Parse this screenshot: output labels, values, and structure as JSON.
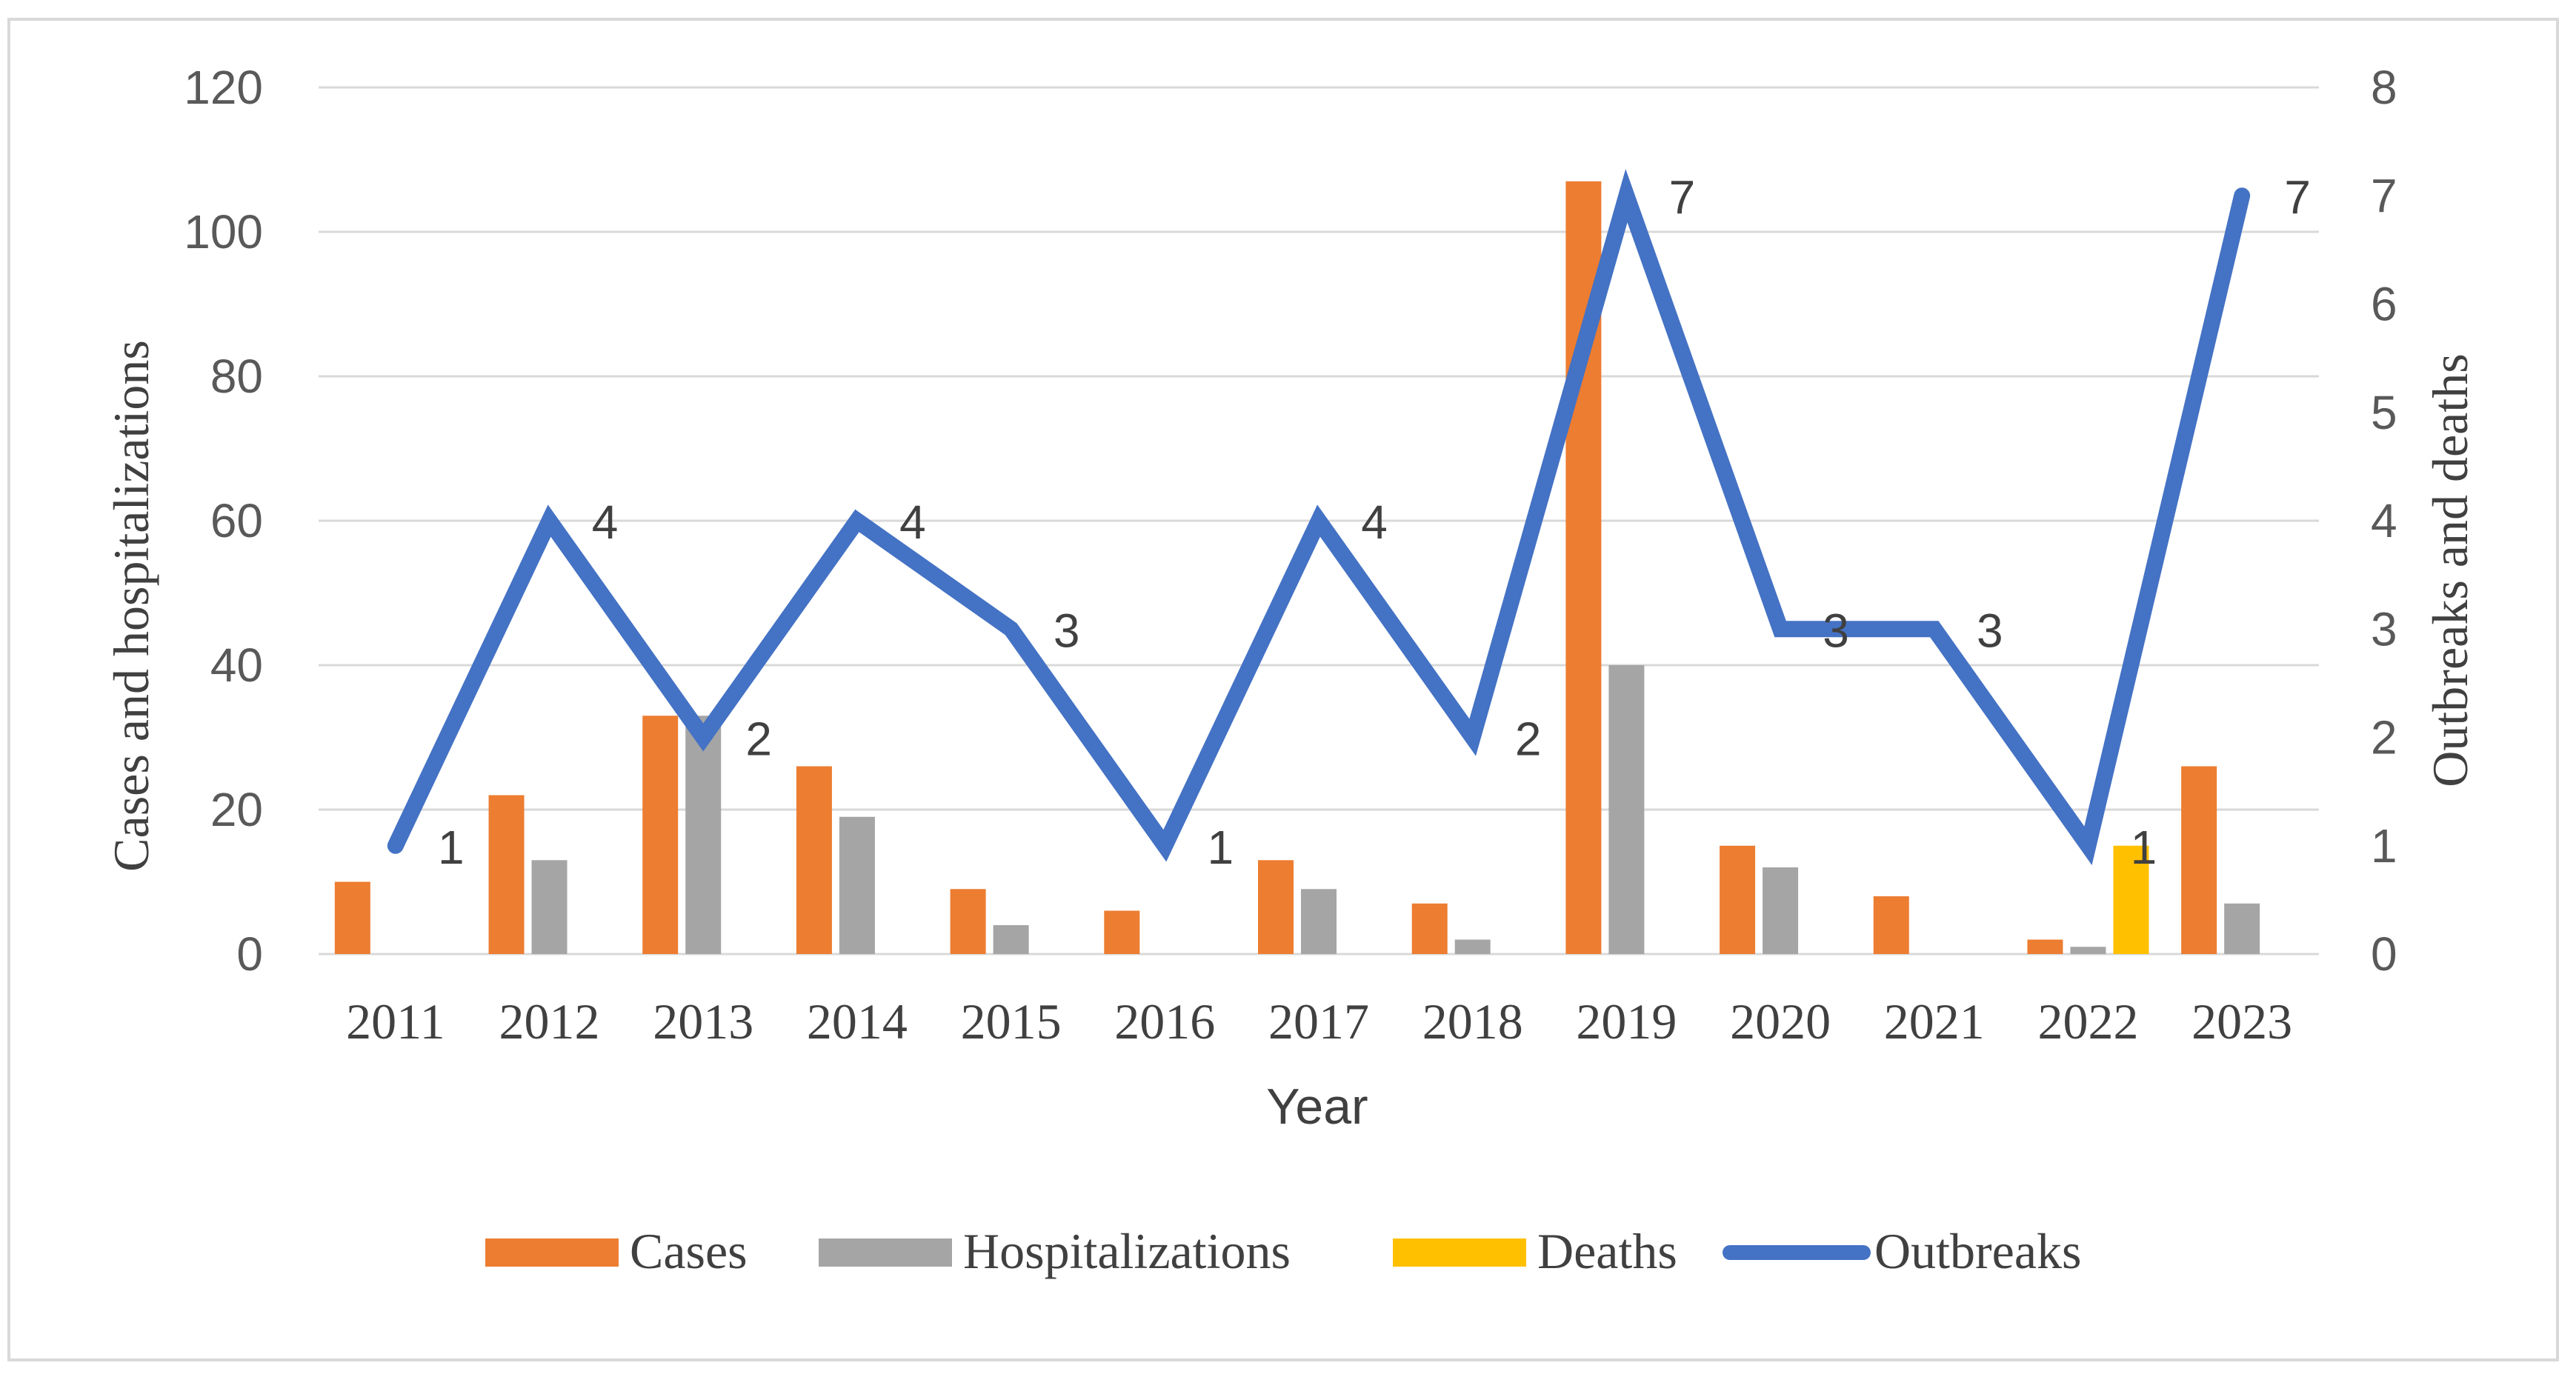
{
  "chart_data": {
    "type": "bar",
    "title": "",
    "xlabel": "Year",
    "ylabel": "Cases and hospitalizations",
    "y2label": "Outbreaks and deaths",
    "ylim": [
      0,
      120
    ],
    "y2lim": [
      0,
      8
    ],
    "yticks": [
      "0",
      "20",
      "40",
      "60",
      "80",
      "100",
      "120"
    ],
    "y2ticks": [
      "0",
      "1",
      "2",
      "3",
      "4",
      "5",
      "6",
      "7",
      "8"
    ],
    "categories": [
      "2011",
      "2012",
      "2013",
      "2014",
      "2015",
      "2016",
      "2017",
      "2018",
      "2019",
      "2020",
      "2021",
      "2022",
      "2023"
    ],
    "series": [
      {
        "name": "Cases",
        "type": "bar",
        "axis": "left",
        "color": "#ED7D31",
        "values": [
          10,
          22,
          33,
          26,
          9,
          6,
          13,
          7,
          107,
          15,
          8,
          2,
          26
        ]
      },
      {
        "name": "Hospitalizations",
        "type": "bar",
        "axis": "left",
        "color": "#A5A5A5",
        "values": [
          0,
          13,
          33,
          19,
          4,
          0,
          9,
          2,
          40,
          12,
          0,
          1,
          7
        ]
      },
      {
        "name": "Deaths",
        "type": "bar",
        "axis": "right",
        "color": "#FFC000",
        "values": [
          0,
          0,
          0,
          0,
          0,
          0,
          0,
          0,
          0,
          0,
          0,
          1,
          0
        ]
      },
      {
        "name": "Outbreaks",
        "type": "line",
        "axis": "right",
        "color": "#4472C4",
        "values": [
          1,
          4,
          2,
          4,
          3,
          1,
          4,
          2,
          7,
          3,
          3,
          1,
          7
        ],
        "labels": [
          "1",
          "4",
          "2",
          "4",
          "3",
          "1",
          "4",
          "2",
          "7",
          "3",
          "3",
          "1",
          "7"
        ]
      }
    ],
    "legend_position": "bottom",
    "grid": true
  }
}
